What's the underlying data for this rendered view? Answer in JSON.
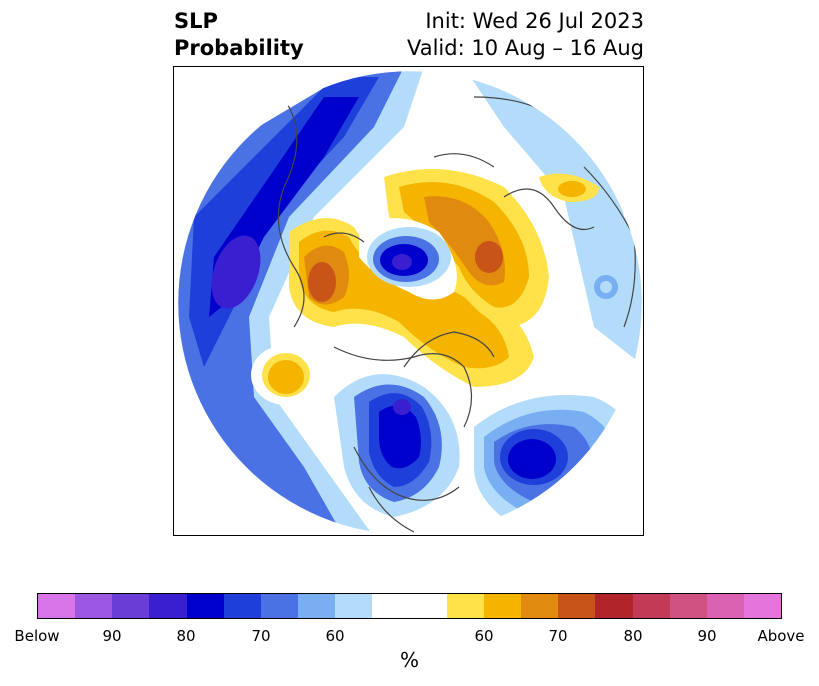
{
  "title": {
    "line1": "SLP",
    "line2": "Probability"
  },
  "subtitle": {
    "init": "Init: Wed 26 Jul 2023",
    "valid": "Valid: 10 Aug – 16 Aug"
  },
  "colorbar": {
    "unit": "%",
    "colors": [
      "#d674e8",
      "#9b57e0",
      "#6a3dd6",
      "#3a1fd0",
      "#0000cd",
      "#1f3fda",
      "#4a72e4",
      "#78aef2",
      "#b3dcfb",
      "#ffffff",
      "#ffffff",
      "#ffe14a",
      "#f4b400",
      "#e08a10",
      "#c85418",
      "#b0242a",
      "#c23a55",
      "#cf5283",
      "#db62b3",
      "#e476db"
    ],
    "ticks": [
      "Below",
      "90",
      "80",
      "70",
      "60",
      "60",
      "70",
      "80",
      "90",
      "Above"
    ]
  },
  "map": {
    "projection": "north-polar-stereographic",
    "regions": [
      {
        "name": "pacific-low",
        "category": "below-80"
      },
      {
        "name": "canada-low",
        "category": "below-80"
      },
      {
        "name": "atlantic-low",
        "category": "below-80"
      },
      {
        "name": "arctic-low",
        "category": "below-80"
      },
      {
        "name": "greenland-high",
        "category": "above-70"
      },
      {
        "name": "russia-high",
        "category": "above-80"
      },
      {
        "name": "siberia-high",
        "category": "above-70"
      },
      {
        "name": "alaska-high",
        "category": "above-60"
      }
    ]
  }
}
